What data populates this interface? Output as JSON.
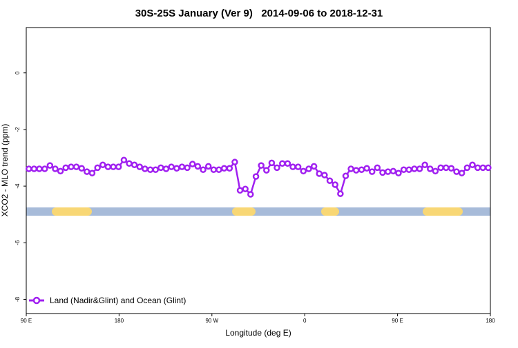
{
  "chart_data": {
    "type": "line",
    "title": "30S-25S January (Ver 9)   2014-09-06 to 2018-12-31",
    "xlabel": "Longitude (deg E)",
    "ylabel": "XCO2 - MLO trend (ppm)",
    "xlim": [
      90,
      540
    ],
    "ylim": [
      -8.5,
      1.6
    ],
    "xticks": [
      {
        "value": 90,
        "label": "90 E"
      },
      180,
      {
        "value": 270,
        "label": "90 W"
      },
      {
        "value": 360,
        "label": "0"
      },
      {
        "value": 450,
        "label": "90 E"
      },
      {
        "value": 540,
        "label": "180"
      }
    ],
    "yticks": [
      0,
      -2,
      -4,
      -6,
      -8
    ],
    "legend_position": "bottom left",
    "x": [
      92.5,
      97.6,
      102.7,
      107.9,
      113.0,
      118.1,
      123.2,
      128.3,
      133.5,
      138.6,
      143.7,
      148.8,
      153.9,
      159.1,
      164.2,
      169.3,
      174.4,
      179.5,
      184.7,
      189.8,
      194.9,
      200.0,
      205.1,
      210.3,
      215.4,
      220.5,
      225.6,
      230.7,
      235.9,
      241.0,
      246.1,
      251.2,
      256.3,
      261.5,
      266.6,
      271.7,
      276.8,
      281.9,
      287.1,
      292.2,
      297.3,
      302.4,
      307.5,
      312.7,
      317.8,
      322.9,
      328.0,
      333.1,
      338.3,
      343.4,
      348.5,
      353.6,
      358.7,
      363.9,
      369.0,
      374.1,
      379.2,
      384.3,
      389.5,
      394.6,
      399.7,
      404.8,
      409.9,
      415.1,
      420.2,
      425.3,
      430.4,
      435.5,
      440.7,
      445.8,
      450.9,
      456.0,
      461.1,
      466.3,
      471.4,
      476.5,
      481.6,
      486.7,
      491.9,
      497.0,
      502.1,
      507.2,
      512.3,
      517.5,
      522.6,
      527.7,
      532.8,
      537.9
    ],
    "series": [
      {
        "name": "Land (Nadir&Glint) and Ocean (Glint)",
        "color": "#a020f0",
        "values": [
          -3.39,
          -3.39,
          -3.39,
          -3.39,
          -3.27,
          -3.39,
          -3.47,
          -3.35,
          -3.32,
          -3.32,
          -3.37,
          -3.49,
          -3.54,
          -3.35,
          -3.25,
          -3.32,
          -3.32,
          -3.32,
          -3.08,
          -3.2,
          -3.25,
          -3.32,
          -3.39,
          -3.42,
          -3.42,
          -3.35,
          -3.39,
          -3.32,
          -3.37,
          -3.32,
          -3.35,
          -3.22,
          -3.3,
          -3.42,
          -3.3,
          -3.42,
          -3.42,
          -3.37,
          -3.37,
          -3.15,
          -4.15,
          -4.1,
          -4.29,
          -3.66,
          -3.27,
          -3.44,
          -3.18,
          -3.35,
          -3.2,
          -3.2,
          -3.32,
          -3.32,
          -3.47,
          -3.39,
          -3.3,
          -3.56,
          -3.61,
          -3.81,
          -3.95,
          -4.27,
          -3.64,
          -3.39,
          -3.44,
          -3.42,
          -3.37,
          -3.49,
          -3.35,
          -3.52,
          -3.49,
          -3.47,
          -3.54,
          -3.42,
          -3.42,
          -3.39,
          -3.39,
          -3.25,
          -3.39,
          -3.47,
          -3.35,
          -3.35,
          -3.37,
          -3.49,
          -3.54,
          -3.35,
          -3.25,
          -3.35,
          -3.35,
          -3.35
        ]
      }
    ]
  }
}
